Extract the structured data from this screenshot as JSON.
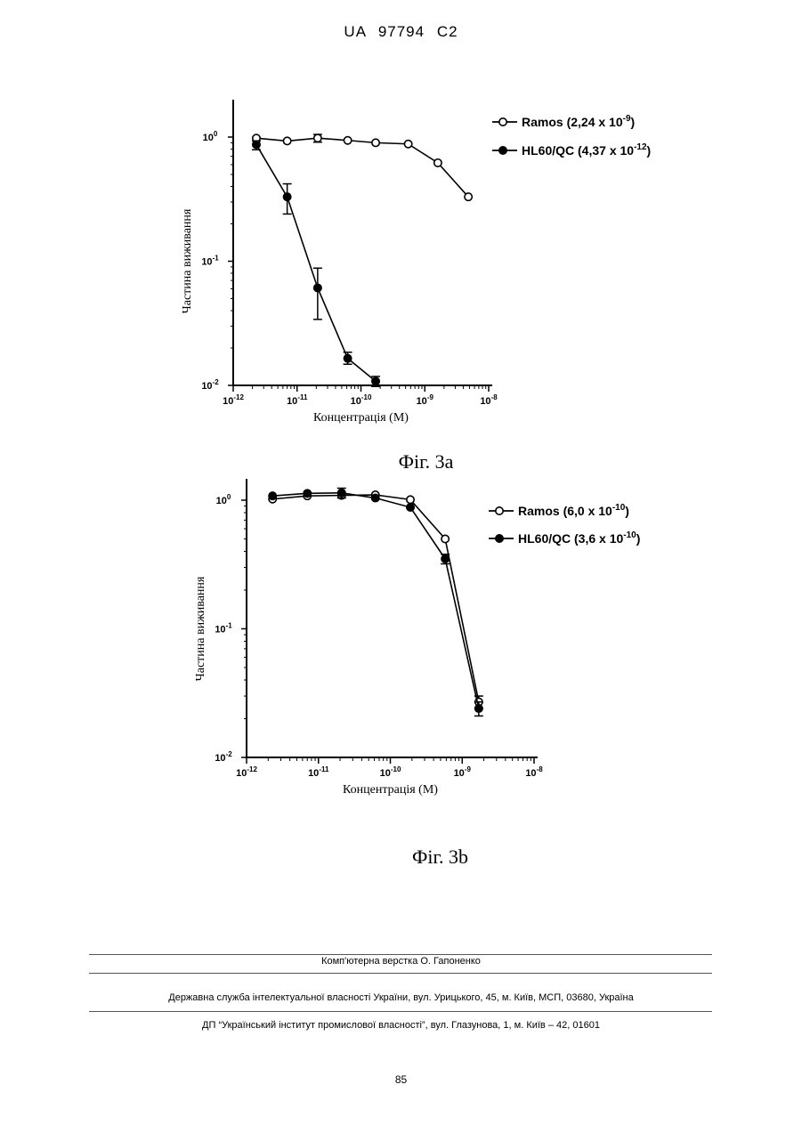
{
  "header": {
    "doc_id": "UA   97794   C2"
  },
  "chart_data": [
    {
      "type": "line",
      "caption": "Фіг. 3а",
      "xlabel": "Концентрація (М)",
      "ylabel": "Частина виживання",
      "xscale": "log",
      "yscale": "log",
      "xlim": [
        1e-12,
        1e-08
      ],
      "ylim": [
        0.01,
        1
      ],
      "grid": false,
      "legend_position": "top-right",
      "x_ticks": [
        {
          "base": "10",
          "exp": "-12"
        },
        {
          "base": "10",
          "exp": "-11"
        },
        {
          "base": "10",
          "exp": "-10"
        },
        {
          "base": "10",
          "exp": "-9"
        },
        {
          "base": "10",
          "exp": "-8"
        }
      ],
      "y_ticks": [
        {
          "base": "10",
          "exp": "0"
        },
        {
          "base": "10",
          "exp": "-1"
        },
        {
          "base": "10",
          "exp": "-2"
        }
      ],
      "series": [
        {
          "name_main": "Ramos (2,24 x 10",
          "name_exp": "-9",
          "name_tail": ")",
          "marker": "open-circle",
          "x": [
            2.3e-12,
            7e-12,
            2.1e-11,
            6.2e-11,
            1.7e-10,
            5.5e-10,
            1.6e-09,
            4.8e-09
          ],
          "y": [
            0.98,
            0.93,
            0.98,
            0.94,
            0.9,
            0.88,
            0.62,
            0.33
          ],
          "err": [
            0,
            0,
            0.07,
            0,
            0,
            0,
            0,
            0
          ]
        },
        {
          "name_main": "HL60/QC (4,37 x 10",
          "name_exp": "-12",
          "name_tail": ")",
          "marker": "filled-circle",
          "x": [
            2.3e-12,
            7e-12,
            2.1e-11,
            6.2e-11,
            1.7e-10
          ],
          "y": [
            0.87,
            0.33,
            0.061,
            0.0165,
            0.0108
          ],
          "err_low": [
            0.79,
            0.24,
            0.034,
            0.0148,
            0.0098
          ],
          "err_high": [
            0.93,
            0.42,
            0.088,
            0.0185,
            0.0118
          ]
        }
      ]
    },
    {
      "type": "line",
      "caption": "Фіг. 3b",
      "xlabel": "Концентрація (М)",
      "ylabel": "Частина виживання",
      "xscale": "log",
      "yscale": "log",
      "xlim": [
        1e-12,
        1e-08
      ],
      "ylim": [
        0.01,
        1
      ],
      "grid": false,
      "legend_position": "top-right",
      "x_ticks": [
        {
          "base": "10",
          "exp": "-12"
        },
        {
          "base": "10",
          "exp": "-11"
        },
        {
          "base": "10",
          "exp": "-10"
        },
        {
          "base": "10",
          "exp": "-9"
        },
        {
          "base": "10",
          "exp": "-8"
        }
      ],
      "y_ticks": [
        {
          "base": "10",
          "exp": "0"
        },
        {
          "base": "10",
          "exp": "-1"
        },
        {
          "base": "10",
          "exp": "-2"
        }
      ],
      "series": [
        {
          "name_main": "Ramos (6,0 x 10",
          "name_exp": "-10",
          "name_tail": ")",
          "marker": "open-circle",
          "x": [
            2.3e-12,
            7e-12,
            2.1e-11,
            6.2e-11,
            1.9e-10,
            5.8e-10,
            1.7e-09
          ],
          "y": [
            1.02,
            1.08,
            1.09,
            1.1,
            1.01,
            0.5,
            0.027
          ],
          "err": [
            0,
            0,
            0,
            0,
            0,
            0,
            0.003
          ]
        },
        {
          "name_main": "HL60/QC (3,6 x 10",
          "name_exp": "-10",
          "name_tail": ")",
          "marker": "filled-circle",
          "x": [
            2.3e-12,
            7e-12,
            2.1e-11,
            6.2e-11,
            1.9e-10,
            5.8e-10,
            1.7e-09
          ],
          "y": [
            1.08,
            1.13,
            1.14,
            1.04,
            0.88,
            0.35,
            0.024
          ],
          "err": [
            0,
            0,
            0.1,
            0,
            0,
            0.03,
            0.003
          ]
        }
      ]
    }
  ],
  "footer": {
    "typesetting": "Комп'ютерна верстка О. Гапоненко",
    "office": "Державна служба інтелектуальної власності України, вул. Урицького, 45, м. Київ, МСП, 03680, Україна",
    "institute": "ДП “Український інститут промислової власності”, вул. Глазунова, 1, м. Київ – 42, 01601",
    "page_number": "85"
  }
}
